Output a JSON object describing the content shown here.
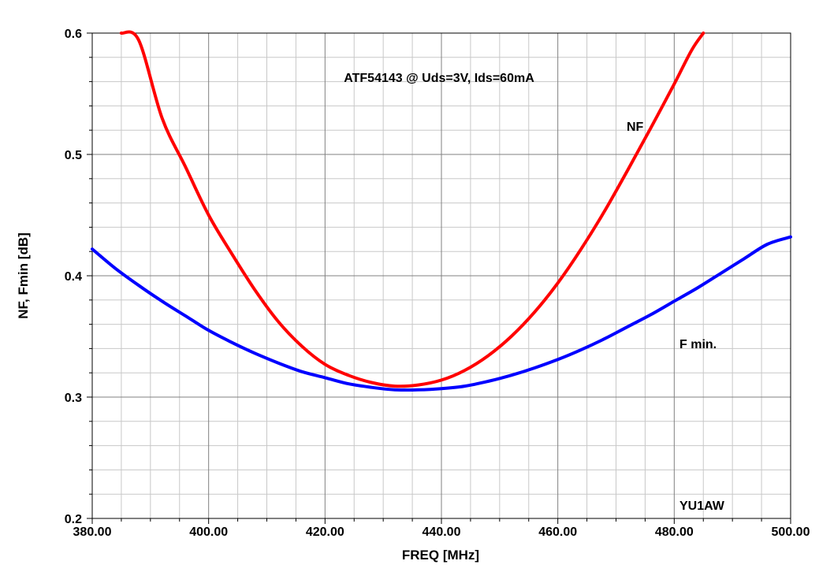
{
  "chart_data": {
    "type": "line",
    "title": "ATF54143 @ Uds=3V, Ids=60mA",
    "xlabel": "FREQ [MHz]",
    "ylabel": "NF, Fmin [dB]",
    "xlim": [
      380,
      500
    ],
    "ylim": [
      0.2,
      0.6
    ],
    "x_ticks": [
      "380.00",
      "400.00",
      "420.00",
      "440.00",
      "460.00",
      "480.00",
      "500.00"
    ],
    "y_ticks": [
      "0.2",
      "0.3",
      "0.4",
      "0.5",
      "0.6"
    ],
    "grid": true,
    "watermark": "YU1AW",
    "series": [
      {
        "name": "NF",
        "color": "#ff0000",
        "points": [
          [
            385,
            0.6
          ],
          [
            388,
            0.594
          ],
          [
            392,
            0.53
          ],
          [
            396,
            0.49
          ],
          [
            400,
            0.45
          ],
          [
            404,
            0.418
          ],
          [
            408,
            0.388
          ],
          [
            412,
            0.362
          ],
          [
            416,
            0.342
          ],
          [
            420,
            0.327
          ],
          [
            424,
            0.318
          ],
          [
            428,
            0.312
          ],
          [
            432,
            0.309
          ],
          [
            436,
            0.31
          ],
          [
            440,
            0.314
          ],
          [
            444,
            0.322
          ],
          [
            448,
            0.334
          ],
          [
            452,
            0.35
          ],
          [
            456,
            0.37
          ],
          [
            460,
            0.394
          ],
          [
            464,
            0.422
          ],
          [
            468,
            0.453
          ],
          [
            472,
            0.487
          ],
          [
            476,
            0.522
          ],
          [
            480,
            0.558
          ],
          [
            483,
            0.586
          ],
          [
            485,
            0.6
          ]
        ]
      },
      {
        "name": "F min.",
        "color": "#0000ff",
        "points": [
          [
            380,
            0.422
          ],
          [
            384,
            0.406
          ],
          [
            388,
            0.392
          ],
          [
            392,
            0.379
          ],
          [
            396,
            0.367
          ],
          [
            400,
            0.355
          ],
          [
            404,
            0.345
          ],
          [
            408,
            0.336
          ],
          [
            412,
            0.328
          ],
          [
            416,
            0.321
          ],
          [
            420,
            0.316
          ],
          [
            424,
            0.311
          ],
          [
            428,
            0.308
          ],
          [
            432,
            0.306
          ],
          [
            436,
            0.306
          ],
          [
            440,
            0.307
          ],
          [
            444,
            0.309
          ],
          [
            448,
            0.313
          ],
          [
            452,
            0.318
          ],
          [
            456,
            0.324
          ],
          [
            460,
            0.331
          ],
          [
            464,
            0.339
          ],
          [
            468,
            0.348
          ],
          [
            472,
            0.358
          ],
          [
            476,
            0.368
          ],
          [
            480,
            0.379
          ],
          [
            484,
            0.39
          ],
          [
            488,
            0.402
          ],
          [
            492,
            0.414
          ],
          [
            496,
            0.426
          ],
          [
            500,
            0.432
          ]
        ]
      }
    ]
  }
}
